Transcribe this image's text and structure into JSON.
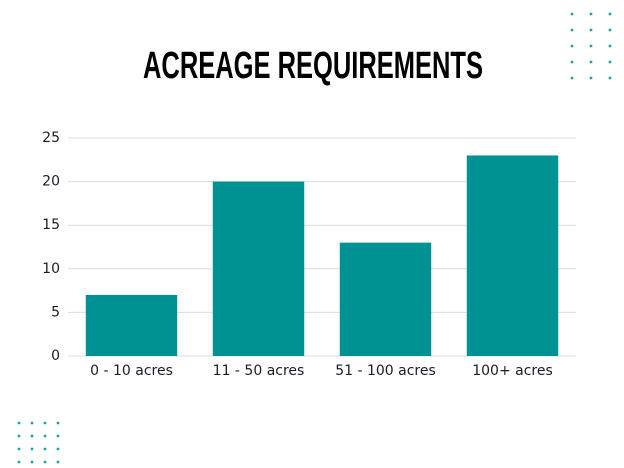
{
  "chart_data": {
    "type": "bar",
    "title": "ACREAGE REQUIREMENTS",
    "categories": [
      "0 - 10 acres",
      "11 - 50 acres",
      "51 - 100 acres",
      "100+ acres"
    ],
    "values": [
      7,
      20,
      13,
      23
    ],
    "color": "#009193",
    "ylim": [
      0,
      25
    ],
    "yticks": [
      0,
      5,
      10,
      15,
      20,
      25
    ],
    "grid": true
  }
}
